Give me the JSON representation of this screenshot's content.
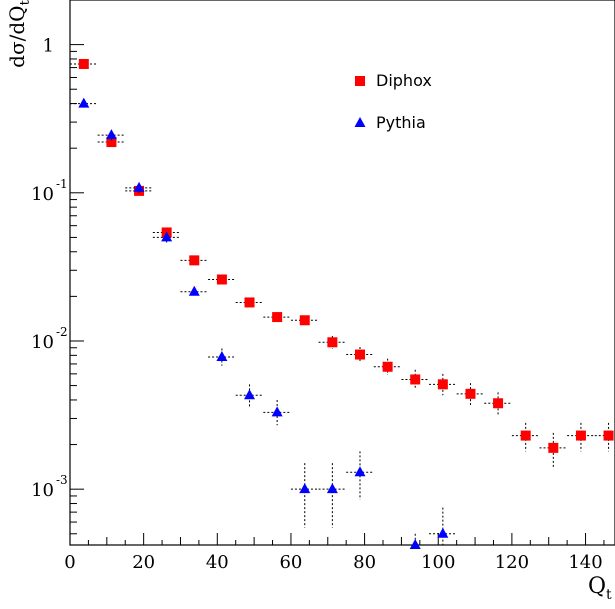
{
  "chart_data": {
    "type": "scatter",
    "xlabel": "Q",
    "xlabel_sub": "t",
    "ylabel": "dσ/dQ",
    "ylabel_sub": "t",
    "y_scale": "log",
    "xlim": [
      0,
      148
    ],
    "ylim": [
      0.00042,
      2.0
    ],
    "grid": false,
    "legend_position": "top-right",
    "x_ticks": [
      0,
      20,
      40,
      60,
      80,
      100,
      120,
      140
    ],
    "y_ticks": [
      {
        "value": 1,
        "base": "1",
        "exp": ""
      },
      {
        "value": 0.1,
        "base": "10",
        "exp": "-1"
      },
      {
        "value": 0.01,
        "base": "10",
        "exp": "-2"
      },
      {
        "value": 0.001,
        "base": "10",
        "exp": "-3"
      }
    ],
    "series": [
      {
        "name": "Diphox",
        "marker": "square",
        "color": "#ff0000",
        "x_err": 3.75,
        "points": [
          {
            "x": 3.75,
            "y": 0.74
          },
          {
            "x": 11.25,
            "y": 0.22
          },
          {
            "x": 18.75,
            "y": 0.103
          },
          {
            "x": 26.25,
            "y": 0.054
          },
          {
            "x": 33.75,
            "y": 0.035
          },
          {
            "x": 41.25,
            "y": 0.026
          },
          {
            "x": 48.75,
            "y": 0.0182
          },
          {
            "x": 56.25,
            "y": 0.0145
          },
          {
            "x": 63.75,
            "y": 0.0138
          },
          {
            "x": 71.25,
            "y": 0.0098,
            "yerr": [
              0.0089,
              0.0108
            ]
          },
          {
            "x": 78.75,
            "y": 0.0081,
            "yerr": [
              0.0072,
              0.0091
            ]
          },
          {
            "x": 86.25,
            "y": 0.0067,
            "yerr": [
              0.0059,
              0.0076
            ]
          },
          {
            "x": 93.75,
            "y": 0.0055,
            "yerr": [
              0.0047,
              0.0064
            ]
          },
          {
            "x": 101.25,
            "y": 0.0051,
            "yerr": [
              0.0043,
              0.006
            ]
          },
          {
            "x": 108.75,
            "y": 0.0044,
            "yerr": [
              0.0037,
              0.0052
            ]
          },
          {
            "x": 116.25,
            "y": 0.0038,
            "yerr": [
              0.0032,
              0.0045
            ]
          },
          {
            "x": 123.75,
            "y": 0.0023,
            "yerr": [
              0.0018,
              0.0028
            ]
          },
          {
            "x": 131.25,
            "y": 0.0019,
            "yerr": [
              0.0014,
              0.0024
            ]
          },
          {
            "x": 138.75,
            "y": 0.0023,
            "yerr": [
              0.0018,
              0.0028
            ]
          },
          {
            "x": 146.25,
            "y": 0.0023,
            "yerr": [
              0.0018,
              0.0028
            ]
          }
        ]
      },
      {
        "name": "Pythia",
        "marker": "triangle",
        "color": "#0000ff",
        "x_err": 3.75,
        "points": [
          {
            "x": 3.75,
            "y": 0.4
          },
          {
            "x": 11.25,
            "y": 0.245,
            "yerr": [
              0.225,
              0.265
            ]
          },
          {
            "x": 18.75,
            "y": 0.108,
            "yerr": [
              0.099,
              0.117
            ]
          },
          {
            "x": 26.25,
            "y": 0.05,
            "yerr": [
              0.046,
              0.054
            ]
          },
          {
            "x": 33.75,
            "y": 0.0215
          },
          {
            "x": 41.25,
            "y": 0.0078,
            "yerr": [
              0.0068,
              0.0089
            ]
          },
          {
            "x": 48.75,
            "y": 0.0043,
            "yerr": [
              0.0036,
              0.0051
            ]
          },
          {
            "x": 56.25,
            "y": 0.0033,
            "yerr": [
              0.0027,
              0.004
            ]
          },
          {
            "x": 63.75,
            "y": 0.001,
            "yerr": [
              0.00055,
              0.0015
            ]
          },
          {
            "x": 71.25,
            "y": 0.001,
            "yerr": [
              0.00055,
              0.0015
            ]
          },
          {
            "x": 78.75,
            "y": 0.0013,
            "yerr": [
              0.00085,
              0.0018
            ]
          },
          {
            "x": 93.75,
            "y": 0.00042,
            "yerr": [
              0.00042,
              0.0005
            ]
          },
          {
            "x": 101.25,
            "y": 0.0005,
            "yerr": [
              0.00042,
              0.00075
            ]
          }
        ]
      }
    ]
  }
}
